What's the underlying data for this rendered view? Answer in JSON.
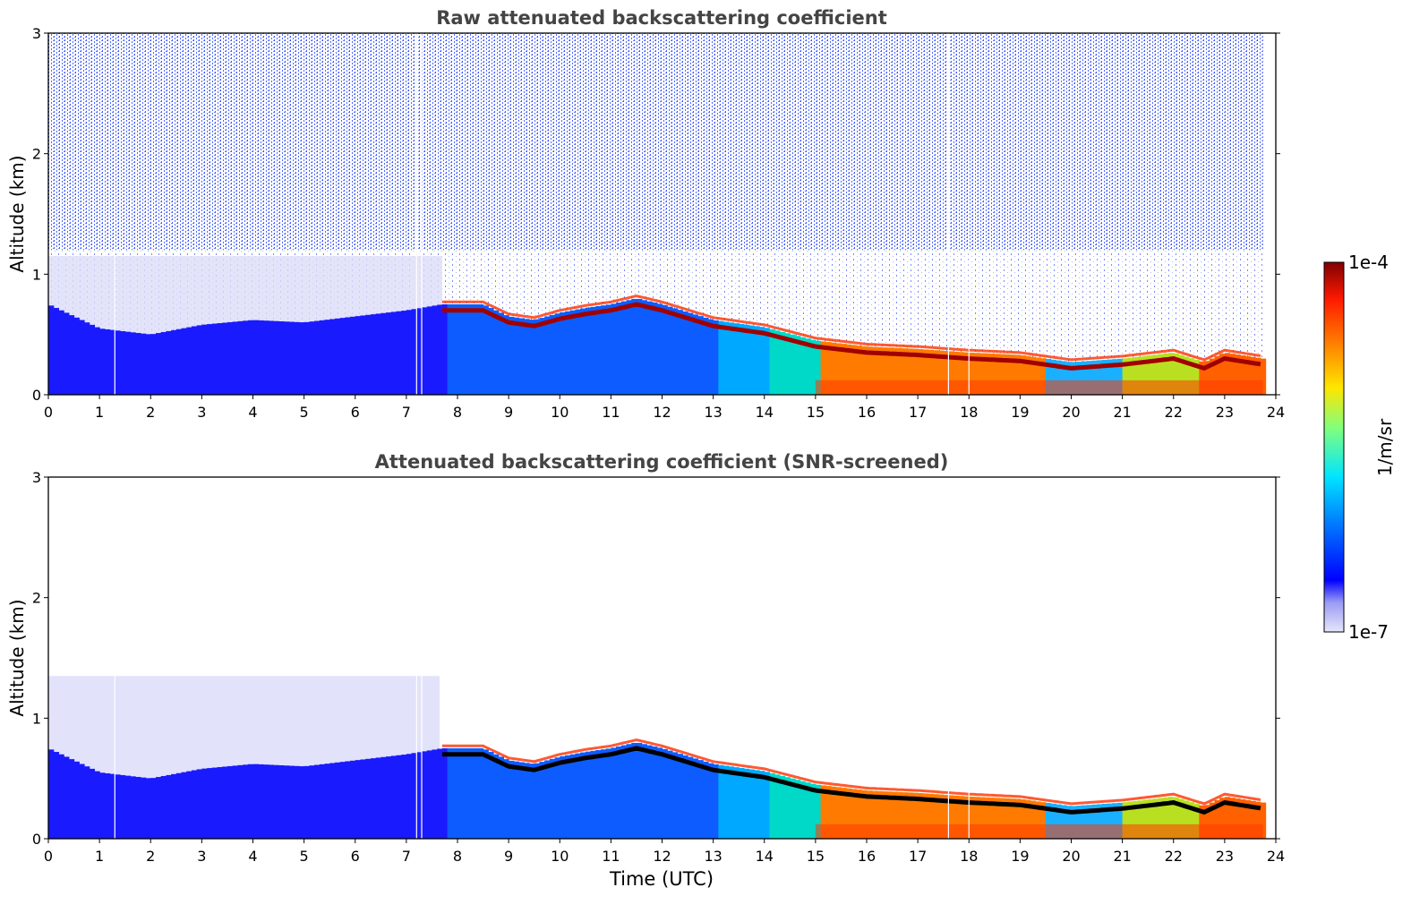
{
  "chart_data": [
    {
      "type": "heatmap",
      "title": "Raw attenuated backscattering coefficient",
      "xlabel": "",
      "ylabel": "Altitude (km)",
      "xlim": [
        0,
        24
      ],
      "ylim": [
        0,
        3
      ],
      "xticks": [
        "0",
        "1",
        "2",
        "3",
        "4",
        "5",
        "6",
        "7",
        "8",
        "9",
        "10",
        "11",
        "12",
        "13",
        "14",
        "15",
        "16",
        "17",
        "18",
        "19",
        "20",
        "21",
        "22",
        "23",
        "24"
      ],
      "yticks": [
        "0",
        "1",
        "2",
        "3"
      ],
      "boundary_layer_top_km": [
        [
          0,
          0.75
        ],
        [
          1,
          0.55
        ],
        [
          2,
          0.5
        ],
        [
          3,
          0.58
        ],
        [
          4,
          0.62
        ],
        [
          5,
          0.6
        ],
        [
          6,
          0.65
        ],
        [
          7,
          0.7
        ],
        [
          7.7,
          0.75
        ],
        [
          8.5,
          0.75
        ],
        [
          9,
          0.65
        ],
        [
          9.5,
          0.62
        ],
        [
          10,
          0.68
        ],
        [
          10.5,
          0.72
        ],
        [
          11,
          0.75
        ],
        [
          11.5,
          0.8
        ],
        [
          12,
          0.75
        ],
        [
          13,
          0.62
        ],
        [
          14,
          0.56
        ],
        [
          15,
          0.45
        ],
        [
          16,
          0.4
        ],
        [
          17,
          0.38
        ],
        [
          18,
          0.35
        ],
        [
          19,
          0.33
        ],
        [
          20,
          0.27
        ],
        [
          21,
          0.3
        ],
        [
          22,
          0.35
        ],
        [
          22.6,
          0.27
        ],
        [
          23,
          0.35
        ],
        [
          23.75,
          0.3
        ]
      ],
      "notes_gaps_utc": [
        1.3,
        7.2,
        7.3,
        17.6,
        18.0
      ]
    },
    {
      "type": "heatmap",
      "title": "Attenuated backscattering coefficient (SNR-screened)",
      "xlabel": "Time (UTC)",
      "ylabel": "Altitude (km)",
      "xlim": [
        0,
        24
      ],
      "ylim": [
        0,
        3
      ],
      "xticks": [
        "0",
        "1",
        "2",
        "3",
        "4",
        "5",
        "6",
        "7",
        "8",
        "9",
        "10",
        "11",
        "12",
        "13",
        "14",
        "15",
        "16",
        "17",
        "18",
        "19",
        "20",
        "21",
        "22",
        "23",
        "24"
      ],
      "yticks": [
        "0",
        "1",
        "2",
        "3"
      ],
      "boundary_layer_top_km": [
        [
          0,
          0.75
        ],
        [
          1,
          0.55
        ],
        [
          2,
          0.5
        ],
        [
          3,
          0.58
        ],
        [
          4,
          0.62
        ],
        [
          5,
          0.6
        ],
        [
          6,
          0.65
        ],
        [
          7,
          0.7
        ],
        [
          7.7,
          0.75
        ],
        [
          8.5,
          0.75
        ],
        [
          9,
          0.65
        ],
        [
          9.5,
          0.62
        ],
        [
          10,
          0.68
        ],
        [
          10.5,
          0.72
        ],
        [
          11,
          0.75
        ],
        [
          11.5,
          0.8
        ],
        [
          12,
          0.75
        ],
        [
          13,
          0.62
        ],
        [
          14,
          0.56
        ],
        [
          15,
          0.45
        ],
        [
          16,
          0.4
        ],
        [
          17,
          0.38
        ],
        [
          18,
          0.35
        ],
        [
          19,
          0.33
        ],
        [
          20,
          0.27
        ],
        [
          21,
          0.3
        ],
        [
          22,
          0.35
        ],
        [
          22.6,
          0.27
        ],
        [
          23,
          0.35
        ],
        [
          23.75,
          0.3
        ]
      ]
    }
  ],
  "colorbar": {
    "label": "1/m/sr",
    "min_label": "1e-7",
    "max_label": "1e-4",
    "colors": [
      "#e6e6fa",
      "#0000ff",
      "#0080ff",
      "#00e5ff",
      "#7fff7f",
      "#ffe600",
      "#ff8000",
      "#ff1a00",
      "#800000"
    ]
  }
}
